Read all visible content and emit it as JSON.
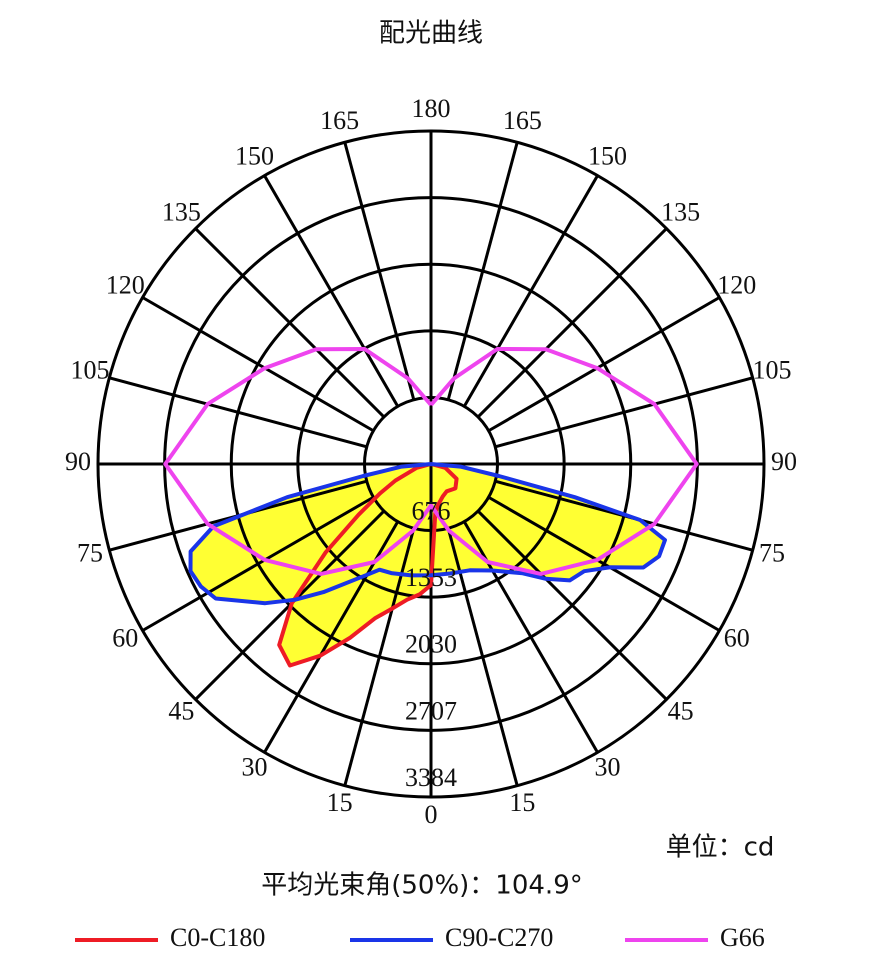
{
  "chart_data": {
    "type": "polar",
    "title": "配光曲线",
    "unit_label": "单位：cd",
    "subtitle": "平均光束角(50%)：104.9°",
    "rlim": [
      0,
      3384
    ],
    "rticks": [
      676,
      1353,
      2030,
      2707,
      3384
    ],
    "xticks": [
      0,
      15,
      30,
      45,
      60,
      75,
      90,
      105,
      120,
      135,
      150,
      165,
      180
    ],
    "fill_color": "#ffff33",
    "series": [
      {
        "name": "C0-C180",
        "color": "#ee1c25",
        "filled": true,
        "x": [
          -90,
          -75,
          -65,
          -60,
          -55,
          -50,
          -45,
          -40,
          -35,
          -30,
          -25,
          -20,
          -15,
          -10,
          -5,
          0,
          5,
          10,
          20,
          30,
          45,
          60,
          75,
          90
        ],
        "values": [
          0,
          150,
          400,
          600,
          900,
          1400,
          2000,
          2400,
          2500,
          2250,
          1950,
          1670,
          1520,
          1400,
          1330,
          1230,
          500,
          420,
          350,
          320,
          350,
          300,
          150,
          0
        ]
      },
      {
        "name": "C90-C270",
        "color": "#1a35e8",
        "filled": true,
        "x": [
          -90,
          -85,
          -80,
          -77,
          -74,
          -70,
          -66,
          -62,
          -58,
          -50,
          -45,
          -40,
          -30,
          -26,
          -20,
          -10,
          0,
          10,
          20,
          30,
          40,
          45,
          50,
          55,
          60,
          64,
          68,
          72,
          75,
          77,
          80,
          85,
          90
        ],
        "values": [
          0,
          300,
          700,
          1500,
          2300,
          2600,
          2675,
          2650,
          2580,
          2200,
          1950,
          1700,
          1300,
          1195,
          1180,
          1150,
          1130,
          1130,
          1150,
          1250,
          1450,
          1650,
          1840,
          1900,
          2100,
          2400,
          2500,
          2500,
          2200,
          1500,
          700,
          300,
          0
        ]
      },
      {
        "name": "G66",
        "color": "#ee44ee",
        "filled": false,
        "x": [
          -180,
          -165,
          -150,
          -135,
          -120,
          -105,
          -90,
          -75,
          -60,
          -45,
          -30,
          -15,
          0,
          15,
          30,
          45,
          60,
          75,
          90,
          105,
          120,
          135,
          150,
          165,
          180
        ],
        "values": [
          600,
          900,
          1350,
          1650,
          1950,
          2350,
          2700,
          2350,
          1950,
          1580,
          1150,
          700,
          420,
          700,
          1150,
          1580,
          1950,
          2350,
          2700,
          2350,
          1950,
          1650,
          1350,
          900,
          600
        ]
      }
    ]
  }
}
